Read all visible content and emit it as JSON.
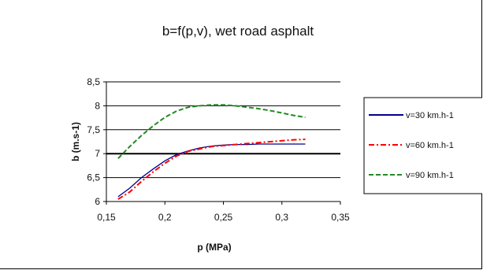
{
  "chart_data": {
    "type": "line",
    "title": "b=f(p,v), wet road asphalt",
    "xlabel": "p (MPa)",
    "ylabel": "b (m.s-1)",
    "xlim": [
      0.15,
      0.35
    ],
    "ylim": [
      6,
      8.5
    ],
    "x_ticks": [
      0.15,
      0.2,
      0.25,
      0.3,
      0.35
    ],
    "x_tick_labels": [
      "0,15",
      "0,2",
      "0,25",
      "0,3",
      "0,35"
    ],
    "y_ticks": [
      6,
      6.5,
      7,
      7.5,
      8,
      8.5
    ],
    "y_tick_labels": [
      "6",
      "6,5",
      "7",
      "7,5",
      "8",
      "8,5"
    ],
    "grid": "horizontal",
    "legend_position": "right",
    "series": [
      {
        "name": "v=30 km.h-1",
        "color": "#00008b",
        "dash": "solid",
        "x": [
          0.16,
          0.17,
          0.18,
          0.19,
          0.2,
          0.21,
          0.22,
          0.23,
          0.24,
          0.25,
          0.26,
          0.27,
          0.28,
          0.29,
          0.3,
          0.31,
          0.32
        ],
        "y": [
          6.1,
          6.28,
          6.5,
          6.68,
          6.85,
          6.98,
          7.06,
          7.12,
          7.16,
          7.18,
          7.19,
          7.19,
          7.2,
          7.2,
          7.2,
          7.2,
          7.2
        ]
      },
      {
        "name": "v=60 km.h-1",
        "color": "#ff0000",
        "dash": "dashdot",
        "x": [
          0.16,
          0.17,
          0.18,
          0.19,
          0.2,
          0.21,
          0.22,
          0.23,
          0.24,
          0.25,
          0.26,
          0.27,
          0.28,
          0.29,
          0.3,
          0.31,
          0.32
        ],
        "y": [
          6.05,
          6.2,
          6.42,
          6.62,
          6.8,
          6.95,
          7.05,
          7.1,
          7.15,
          7.17,
          7.19,
          7.21,
          7.23,
          7.25,
          7.27,
          7.29,
          7.3
        ]
      },
      {
        "name": "v=90 km.h-1",
        "color": "#228b22",
        "dash": "dashed",
        "x": [
          0.16,
          0.17,
          0.18,
          0.19,
          0.2,
          0.21,
          0.22,
          0.23,
          0.24,
          0.25,
          0.26,
          0.27,
          0.28,
          0.29,
          0.3,
          0.31,
          0.32
        ],
        "y": [
          6.9,
          7.15,
          7.38,
          7.58,
          7.76,
          7.89,
          7.97,
          8.0,
          8.02,
          8.02,
          8.0,
          7.97,
          7.94,
          7.9,
          7.85,
          7.8,
          7.76
        ]
      }
    ]
  }
}
